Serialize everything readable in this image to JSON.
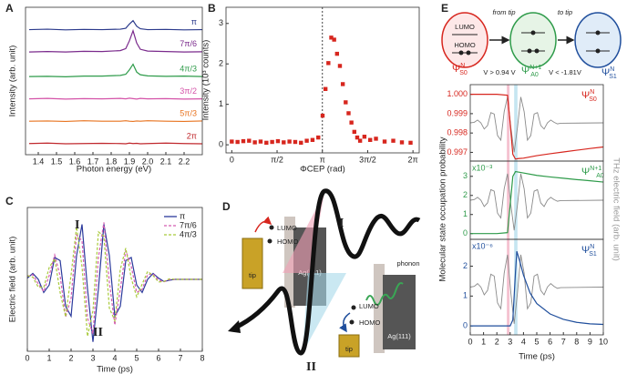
{
  "chart_data": [
    {
      "type": "line",
      "panel": "A",
      "xlabel": "Photon energy (eV)",
      "ylabel": "Intensity (arb. unit)",
      "x": [
        1.35,
        1.45,
        1.55,
        1.65,
        1.75,
        1.85,
        1.88,
        1.9,
        1.92,
        1.94,
        1.96,
        2.0,
        2.1,
        2.2,
        2.3
      ],
      "xlim": [
        1.33,
        2.3
      ],
      "xticks": [
        1.4,
        1.5,
        1.6,
        1.7,
        1.8,
        1.9,
        {
          "value": 2,
          "label": "2.0"
        },
        2.1,
        2.2
      ],
      "ylim": [
        0,
        6.6
      ],
      "series_labels": "inline",
      "series": [
        {
          "name": "π",
          "color": "#2b3a8c",
          "values": [
            5.6,
            5.62,
            5.59,
            5.61,
            5.6,
            5.62,
            5.66,
            5.85,
            6.0,
            5.75,
            5.64,
            5.6,
            5.61,
            5.59,
            5.6
          ]
        },
        {
          "name": "7π/6",
          "color": "#7a2a8c",
          "values": [
            4.6,
            4.62,
            4.6,
            4.63,
            4.62,
            4.66,
            4.75,
            5.1,
            5.55,
            5.0,
            4.72,
            4.64,
            4.62,
            4.6,
            4.61
          ]
        },
        {
          "name": "4π/3",
          "color": "#2e9b4a",
          "values": [
            3.5,
            3.51,
            3.49,
            3.52,
            3.52,
            3.55,
            3.6,
            3.8,
            4.05,
            3.7,
            3.58,
            3.53,
            3.51,
            3.52,
            3.5
          ]
        },
        {
          "name": "3π/2",
          "color": "#d453a8",
          "values": [
            2.5,
            2.52,
            2.49,
            2.51,
            2.5,
            2.52,
            2.5,
            2.53,
            2.51,
            2.49,
            2.52,
            2.5,
            2.51,
            2.49,
            2.5
          ]
        },
        {
          "name": "5π/3",
          "color": "#e8731f",
          "values": [
            1.5,
            1.51,
            1.49,
            1.52,
            1.5,
            1.5,
            1.52,
            1.5,
            1.49,
            1.51,
            1.5,
            1.52,
            1.5,
            1.49,
            1.51
          ]
        },
        {
          "name": "2π",
          "color": "#c0282d",
          "values": [
            0.5,
            0.52,
            0.49,
            0.5,
            0.51,
            0.5,
            0.49,
            0.52,
            0.5,
            0.51,
            0.49,
            0.5,
            0.52,
            0.5,
            0.49
          ]
        }
      ]
    },
    {
      "type": "scatter",
      "panel": "B",
      "xlabel": "ΦCEP (rad)",
      "ylabel": "Intensity (10³ counts)",
      "x": [
        0,
        0.2,
        0.4,
        0.6,
        0.8,
        1.0,
        1.2,
        1.4,
        1.6,
        1.8,
        2.0,
        2.2,
        2.4,
        2.6,
        2.8,
        3.0,
        3.15,
        3.25,
        3.35,
        3.45,
        3.55,
        3.65,
        3.75,
        3.85,
        3.95,
        4.05,
        4.15,
        4.25,
        4.35,
        4.45,
        4.6,
        4.8,
        5.0,
        5.3,
        5.6,
        5.9,
        6.2
      ],
      "xlim": [
        -0.2,
        6.5
      ],
      "xticks": [
        0,
        {
          "value": 1.5708,
          "label": "π/2"
        },
        {
          "value": 3.1416,
          "label": "π"
        },
        {
          "value": 4.7124,
          "label": "3π/2"
        },
        {
          "value": 6.2832,
          "label": "2π"
        }
      ],
      "ylim": [
        -0.2,
        3.4
      ],
      "yticks": [
        0,
        1,
        2,
        3
      ],
      "vline": 3.1416,
      "series": [
        {
          "color": "#d7261e",
          "values": [
            0.08,
            0.07,
            0.09,
            0.1,
            0.06,
            0.08,
            0.05,
            0.07,
            0.09,
            0.06,
            0.08,
            0.07,
            0.05,
            0.1,
            0.12,
            0.18,
            0.72,
            1.38,
            2.02,
            2.65,
            2.6,
            2.25,
            1.95,
            1.5,
            1.05,
            0.78,
            0.55,
            0.32,
            0.18,
            0.1,
            0.2,
            0.12,
            0.15,
            0.08,
            0.1,
            0.06,
            0.05
          ]
        }
      ]
    },
    {
      "type": "line",
      "panel": "C",
      "xlabel": "Time (ps)",
      "ylabel": "Electric field (arb. unit)",
      "x": [
        0,
        0.25,
        0.5,
        0.75,
        1,
        1.25,
        1.5,
        1.75,
        2,
        2.25,
        2.5,
        2.75,
        3,
        3.25,
        3.5,
        3.75,
        4,
        4.25,
        4.5,
        4.75,
        5,
        5.25,
        5.5,
        5.75,
        6,
        6.25,
        6.5,
        6.75,
        7,
        7.25,
        7.5,
        7.75,
        8
      ],
      "xlim": [
        0,
        8
      ],
      "xticks": [
        0,
        1,
        2,
        3,
        4,
        5,
        6,
        7,
        8
      ],
      "ylim": [
        -1.15,
        1.15
      ],
      "legend": "upper right",
      "annotations": [
        "I",
        "II"
      ],
      "series": [
        {
          "name": "π",
          "color": "#2b3a9c",
          "values": [
            0.019,
            0.096,
            0,
            -0.21,
            -0.09,
            0.35,
            0.3,
            -0.43,
            -0.59,
            0.38,
            0.88,
            -0.15,
            -1,
            -0.15,
            0.88,
            0.38,
            -0.59,
            -0.43,
            0.3,
            0.35,
            -0.09,
            -0.21,
            0,
            0.096,
            0.019,
            -0.034,
            -0.014,
            0,
            0,
            0,
            0,
            0,
            0
          ]
        },
        {
          "name": "7π/6",
          "color": "#d45cb0",
          "dash": true,
          "values": [
            0.046,
            0.076,
            -0.073,
            -0.195,
            0.061,
            0.39,
            0.055,
            -0.6,
            -0.3,
            0.71,
            0.62,
            -0.62,
            -0.87,
            0.35,
            0.91,
            -0.04,
            -0.73,
            -0.16,
            0.46,
            0.21,
            -0.21,
            -0.16,
            0.073,
            0.09,
            -0.013,
            -0.038,
            -0.003,
            0,
            0,
            0,
            0,
            0,
            0
          ]
        },
        {
          "name": "4π/3",
          "color": "#a8c93a",
          "dash": true,
          "values": [
            0.061,
            0.035,
            -0.125,
            -0.13,
            0.19,
            0.33,
            -0.21,
            -0.6,
            0.073,
            0.84,
            0.2,
            -0.91,
            -0.5,
            0.76,
            0.69,
            -0.46,
            -0.66,
            0.16,
            0.5,
            0.02,
            -0.28,
            -0.076,
            0.126,
            0.061,
            -0.042,
            -0.032,
            0.009,
            0,
            0,
            0,
            0,
            0,
            0
          ]
        }
      ]
    },
    {
      "type": "line",
      "panel": "E",
      "xlim": [
        0,
        10
      ],
      "ylim": [
        0.99655,
        1.0005
      ],
      "tick_color": "#d7261e",
      "yticks": [
        0.997,
        0.998,
        0.999,
        {
          "value": 1,
          "label": "1.000"
        }
      ],
      "y2lim": [
        -1.3,
        1.3
      ],
      "legend": "upper right",
      "highlights": [
        {
          "x": [
            2.75,
            2.95
          ],
          "color": "#f2b3c4"
        },
        {
          "x": [
            3.3,
            3.55
          ],
          "color": "#b8e0ee"
        }
      ],
      "series": [
        {
          "axis": "y2",
          "color": "#8a8a8a",
          "x": [
            0,
            0.3,
            0.55,
            0.8,
            1.05,
            1.3,
            1.55,
            1.8,
            2.05,
            2.3,
            2.55,
            2.8,
            3.05,
            3.3,
            3.55,
            3.8,
            4.05,
            4.3,
            4.55,
            4.8,
            5.05,
            5.3,
            5.55,
            5.8,
            6.05,
            6.3,
            6.55,
            6.8,
            10
          ],
          "values": [
            0,
            0.019,
            0.096,
            0,
            -0.21,
            -0.09,
            0.35,
            0.3,
            -0.43,
            -0.59,
            0.38,
            0.88,
            -0.15,
            -1,
            -0.15,
            0.88,
            0.38,
            -0.59,
            -0.43,
            0.3,
            0.35,
            -0.09,
            -0.21,
            0,
            0.096,
            0.019,
            -0.034,
            -0.014,
            0
          ]
        },
        {
          "name": "Ψ",
          "name_sup": "N",
          "name_sub": "S0",
          "color": "#d7261e",
          "x": [
            0,
            1,
            2,
            2.8,
            3.0,
            3.2,
            3.4,
            3.6,
            4,
            5,
            6,
            7,
            8,
            9,
            10
          ],
          "values": [
            1,
            1,
            1,
            0.99995,
            0.9985,
            0.9969,
            0.99665,
            0.99668,
            0.9967,
            0.99683,
            0.99693,
            0.99702,
            0.99711,
            0.9972,
            0.99728
          ]
        }
      ]
    },
    {
      "type": "line",
      "xlim": [
        0,
        10
      ],
      "ylim": [
        -0.3,
        3.8
      ],
      "yticks": [
        0,
        1,
        2,
        3
      ],
      "tick_color": "#2e9b4a",
      "scale_label": "x10⁻³",
      "ylabel": "Molecular state occupation probability",
      "y2label": "THz electric field (arb. unit)",
      "y2lim": [
        -1.3,
        1.3
      ],
      "legend": "upper right",
      "series": [
        {
          "axis": "y2",
          "color": "#8a8a8a",
          "x": [
            0,
            0.3,
            0.55,
            0.8,
            1.05,
            1.3,
            1.55,
            1.8,
            2.05,
            2.3,
            2.55,
            2.8,
            3.05,
            3.3,
            3.55,
            3.8,
            4.05,
            4.3,
            4.55,
            4.8,
            5.05,
            5.3,
            5.55,
            5.8,
            6.05,
            6.3,
            6.55,
            6.8,
            10
          ],
          "values": [
            0,
            0.019,
            0.096,
            0,
            -0.21,
            -0.09,
            0.35,
            0.3,
            -0.43,
            -0.59,
            0.38,
            0.88,
            -0.15,
            -1,
            -0.15,
            0.88,
            0.38,
            -0.59,
            -0.43,
            0.3,
            0.35,
            -0.09,
            -0.21,
            0,
            0.096,
            0.019,
            -0.034,
            -0.014,
            0
          ]
        },
        {
          "name": "Ψ",
          "name_sup": "N+1",
          "name_sub": "A0",
          "color": "#2e9b4a",
          "x": [
            0,
            2,
            2.8,
            3.0,
            3.2,
            3.4,
            3.8,
            5,
            6,
            7,
            8,
            9,
            10
          ],
          "values": [
            0,
            0,
            0.05,
            1.5,
            3.0,
            3.25,
            3.2,
            3.05,
            2.97,
            2.9,
            2.83,
            2.77,
            2.7
          ]
        }
      ]
    },
    {
      "type": "line",
      "xlabel": "Time (ps)",
      "xlim": [
        0,
        10
      ],
      "xticks": [
        0,
        1,
        2,
        3,
        4,
        5,
        6,
        7,
        8,
        9,
        10
      ],
      "ylim": [
        -0.3,
        2.9
      ],
      "yticks": [
        0,
        1,
        2
      ],
      "tick_color": "#1f4e9c",
      "scale_label": "x10⁻⁶",
      "y2lim": [
        -1.3,
        1.3
      ],
      "legend": "upper right",
      "series": [
        {
          "axis": "y2",
          "color": "#8a8a8a",
          "x": [
            0,
            0.3,
            0.55,
            0.8,
            1.05,
            1.3,
            1.55,
            1.8,
            2.05,
            2.3,
            2.55,
            2.8,
            3.05,
            3.3,
            3.55,
            3.8,
            4.05,
            4.3,
            4.55,
            4.8,
            5.05,
            5.3,
            5.55,
            5.8,
            6.05,
            6.3,
            6.55,
            6.8,
            10
          ],
          "values": [
            0,
            0.019,
            0.096,
            0,
            -0.21,
            -0.09,
            0.35,
            0.3,
            -0.43,
            -0.59,
            0.38,
            0.88,
            -0.15,
            -1,
            -0.15,
            0.88,
            0.38,
            -0.59,
            -0.43,
            0.3,
            0.35,
            -0.09,
            -0.21,
            0,
            0.096,
            0.019,
            -0.034,
            -0.014,
            0
          ]
        },
        {
          "name": "Ψ",
          "name_sup": "N",
          "name_sub": "S1",
          "color": "#1f4e9c",
          "x": [
            0,
            3,
            3.2,
            3.4,
            3.5,
            3.7,
            4,
            4.5,
            5,
            6,
            7,
            8,
            9,
            10
          ],
          "values": [
            0,
            0,
            0.2,
            1.8,
            2.5,
            2.2,
            1.7,
            1.1,
            0.75,
            0.4,
            0.22,
            0.12,
            0.07,
            0.05
          ]
        }
      ]
    }
  ],
  "diagram_D": {
    "panel": "D",
    "tip_left": "tip",
    "lumo_left": "LUMO",
    "homo_left": "HOMO",
    "ag_left": "Ag(111)",
    "label_I": "I",
    "label_II": "II",
    "phonon": "phonon",
    "tip_right": "tip",
    "lumo_right": "LUMO",
    "homo_right": "HOMO",
    "ag_right": "Ag(111)"
  },
  "diagram_E": {
    "lumo": "LUMO",
    "homo": "HOMO",
    "from_tip": "from tip",
    "to_tip": "to tip",
    "v_from": "V > 0.94 V",
    "v_to": "V < -1.81V",
    "states": [
      {
        "symbol": "Ψ",
        "sup": "N",
        "sub": "S0"
      },
      {
        "symbol": "Ψ",
        "sup": "N+1",
        "sub": "A0"
      },
      {
        "symbol": "Ψ",
        "sup": "N",
        "sub": "S1"
      }
    ]
  }
}
